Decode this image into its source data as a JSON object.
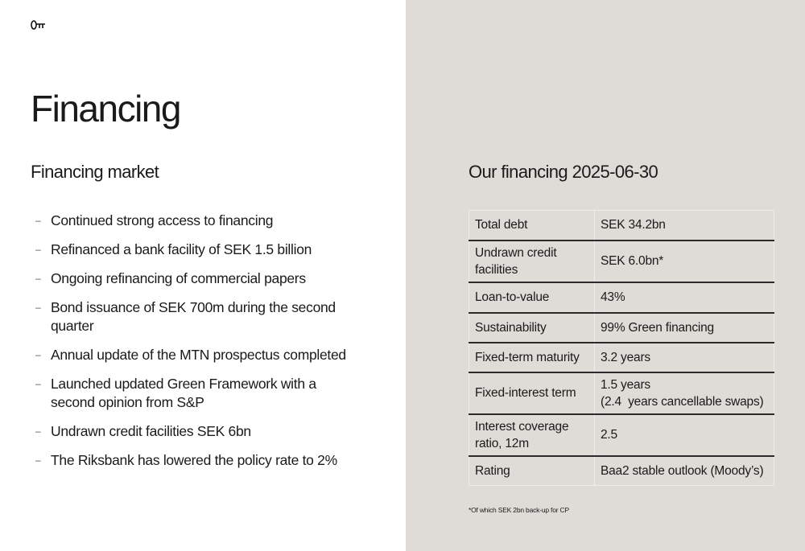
{
  "logo": {
    "icon": "key-icon"
  },
  "title": "Financing",
  "market": {
    "heading": "Financing market",
    "bullets": [
      "Continued strong access to financing",
      "Refinanced a bank facility of SEK 1.5 billion",
      "Ongoing refinancing of commercial papers",
      "Bond issuance of SEK 700m during the second quarter",
      "Annual update of the MTN prospectus completed",
      "Launched updated Green Framework with a second opinion from S&P",
      "Undrawn credit facilities SEK 6bn",
      "The Riksbank has lowered the policy rate to 2%"
    ]
  },
  "ours": {
    "heading": "Our financing 2025-06-30",
    "rows": [
      {
        "label": "Total debt",
        "value": "SEK 34.2bn"
      },
      {
        "label": "Undrawn credit facilities",
        "value": "SEK 6.0bn*"
      },
      {
        "label": "Loan-to-value",
        "value": "43%"
      },
      {
        "label": "Sustainability",
        "value": "99% Green financing"
      },
      {
        "label": "Fixed-term maturity",
        "value": "3.2 years"
      },
      {
        "label": "Fixed-interest term",
        "value": "1.5 years",
        "value2": "(2.4  years cancellable swaps)"
      },
      {
        "label": "Interest coverage ratio, 12m",
        "value": "2.5"
      },
      {
        "label": "Rating",
        "value": "Baa2 stable outlook (Moody’s)"
      }
    ],
    "footnote": "*Of which SEK 2bn back-up for CP"
  },
  "colors": {
    "panel": "#dfdcd8",
    "text": "#1a1a1a"
  }
}
